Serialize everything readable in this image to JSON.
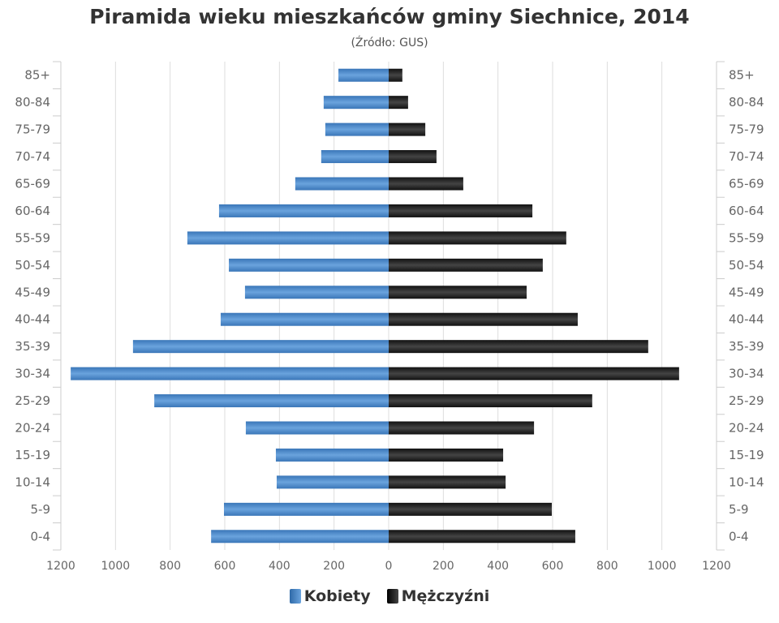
{
  "chart_data": {
    "type": "bar",
    "orientation": "horizontal",
    "title": "Piramida wieku mieszkańców gminy Siechnice, 2014",
    "subtitle": "(Źródło: GUS)",
    "categories": [
      "85+",
      "80-84",
      "75-79",
      "70-74",
      "65-69",
      "60-64",
      "55-59",
      "50-54",
      "45-49",
      "40-44",
      "35-39",
      "30-34",
      "25-29",
      "20-24",
      "15-19",
      "10-14",
      "5-9",
      "0-4"
    ],
    "series": [
      {
        "name": "Kobiety",
        "color": "#4a86c5",
        "values": [
          184,
          238,
          232,
          247,
          342,
          621,
          737,
          585,
          526,
          615,
          936,
          1164,
          858,
          523,
          413,
          410,
          603,
          650
        ]
      },
      {
        "name": "Mężczyźni",
        "color": "#1a1a1a",
        "values": [
          50,
          71,
          134,
          175,
          273,
          526,
          650,
          564,
          505,
          692,
          950,
          1063,
          745,
          532,
          419,
          428,
          597,
          683
        ]
      }
    ],
    "xlim": [
      -1200,
      1200
    ],
    "xticks": [
      "1200",
      "1000",
      "800",
      "600",
      "400",
      "200",
      "0",
      "200",
      "400",
      "600",
      "800",
      "1000",
      "1200"
    ],
    "grid": true,
    "legend": "bottom-center"
  }
}
